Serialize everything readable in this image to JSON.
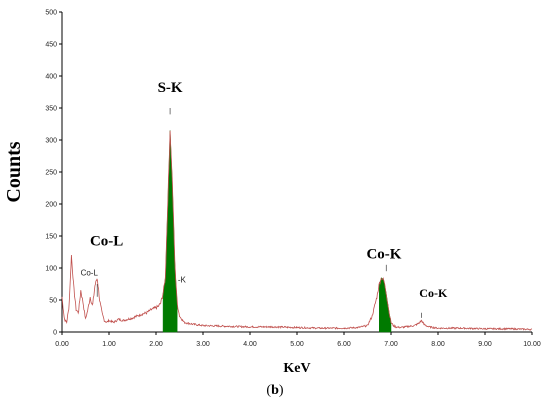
{
  "caption": {
    "open": "(",
    "letter": "b",
    "close": ")"
  },
  "chart_data": {
    "type": "area",
    "xlabel": "KeV",
    "ylabel": "Counts",
    "xlim": [
      0,
      10
    ],
    "ylim": [
      0,
      500
    ],
    "x_ticks": [
      "0.00",
      "1.00",
      "2.00",
      "3.00",
      "4.00",
      "5.00",
      "6.00",
      "7.00",
      "8.00",
      "9.00",
      "10.00"
    ],
    "y_ticks": [
      "0",
      "50",
      "100",
      "150",
      "200",
      "250",
      "300",
      "350",
      "400",
      "450",
      "500"
    ],
    "grid": false,
    "colors": {
      "line": "#c0504d",
      "fill": "#007a00",
      "axis": "#000000"
    },
    "series": [
      {
        "x": [
          0.0,
          0.05,
          0.1,
          0.15,
          0.2,
          0.25,
          0.3,
          0.35,
          0.4,
          0.45,
          0.5,
          0.55,
          0.6,
          0.65,
          0.7,
          0.75,
          0.8,
          0.85,
          0.9,
          0.95,
          1.0,
          1.1,
          1.2,
          1.3,
          1.4,
          1.5,
          1.6,
          1.7,
          1.8,
          1.9,
          2.0,
          2.05,
          2.1,
          2.15,
          2.2,
          2.25,
          2.3,
          2.35,
          2.4,
          2.45,
          2.5,
          2.6,
          2.8,
          3.0,
          3.5,
          4.0,
          4.5,
          5.0,
          5.5,
          6.0,
          6.3,
          6.5,
          6.6,
          6.7,
          6.75,
          6.8,
          6.85,
          6.9,
          6.95,
          7.0,
          7.05,
          7.1,
          7.2,
          7.3,
          7.4,
          7.5,
          7.6,
          7.65,
          7.7,
          7.8,
          8.0,
          8.5,
          9.0,
          9.5,
          10.0
        ],
        "y": [
          55,
          20,
          15,
          40,
          120,
          70,
          35,
          30,
          65,
          45,
          20,
          35,
          55,
          40,
          72,
          85,
          50,
          30,
          18,
          15,
          18,
          15,
          20,
          18,
          20,
          22,
          25,
          28,
          30,
          35,
          38,
          40,
          45,
          60,
          85,
          200,
          315,
          230,
          110,
          45,
          25,
          15,
          12,
          10,
          9,
          8,
          8,
          7,
          6,
          6,
          7,
          10,
          25,
          55,
          75,
          85,
          80,
          60,
          35,
          15,
          10,
          8,
          7,
          8,
          9,
          10,
          14,
          18,
          12,
          8,
          6,
          6,
          5,
          5,
          4
        ]
      }
    ],
    "fill_ranges": [
      [
        2.15,
        2.45
      ],
      [
        6.75,
        7.0
      ]
    ],
    "annotations": [
      {
        "text": "S-K",
        "x": 2.3,
        "y": 375,
        "size": "large"
      },
      {
        "text": "Co-L",
        "x": 0.95,
        "y": 135,
        "size": "large"
      },
      {
        "text": "Co-L",
        "x": 0.58,
        "y": 88,
        "size": "small"
      },
      {
        "text": "-K",
        "x": 2.55,
        "y": 77,
        "size": "small"
      },
      {
        "text": "Co-K",
        "x": 6.85,
        "y": 115,
        "size": "large"
      },
      {
        "text": "Co-K",
        "x": 7.9,
        "y": 55,
        "size": "medium"
      }
    ]
  }
}
